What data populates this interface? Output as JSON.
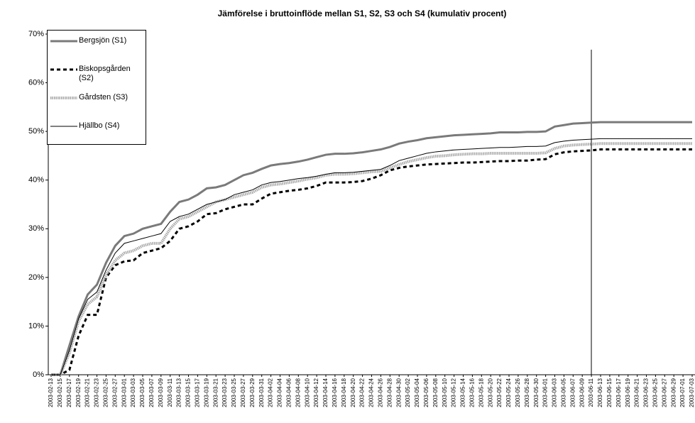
{
  "chart_data": {
    "type": "line",
    "title": "Jämförelse i bruttoinflöde mellan S1, S2, S3 och S4 (kumulativ procent)",
    "categories": [
      "2003-02-13",
      "2003-02-15",
      "2003-02-17",
      "2003-02-19",
      "2003-02-21",
      "2003-02-23",
      "2003-02-25",
      "2003-02-27",
      "2003-03-01",
      "2003-03-03",
      "2003-03-05",
      "2003-03-07",
      "2003-03-09",
      "2003-03-11",
      "2003-03-13",
      "2003-03-15",
      "2003-03-17",
      "2003-03-19",
      "2003-03-21",
      "2003-03-23",
      "2003-03-25",
      "2003-03-27",
      "2003-03-29",
      "2003-03-31",
      "2003-04-02",
      "2003-04-04",
      "2003-04-06",
      "2003-04-08",
      "2003-04-10",
      "2003-04-12",
      "2003-04-14",
      "2003-04-16",
      "2003-04-18",
      "2003-04-20",
      "2003-04-22",
      "2003-04-24",
      "2003-04-26",
      "2003-04-28",
      "2003-04-30",
      "2003-05-02",
      "2003-05-04",
      "2003-05-06",
      "2003-05-08",
      "2003-05-10",
      "2003-05-12",
      "2003-05-14",
      "2003-05-16",
      "2003-05-18",
      "2003-05-20",
      "2003-05-22",
      "2003-05-24",
      "2003-05-26",
      "2003-05-28",
      "2003-05-30",
      "2003-06-01",
      "2003-06-03",
      "2003-06-05",
      "2003-06-07",
      "2003-06-09",
      "2003-06-11",
      "2003-06-13",
      "2003-06-15",
      "2003-06-17",
      "2003-06-19",
      "2003-06-21",
      "2003-06-23",
      "2003-06-25",
      "2003-06-27",
      "2003-06-29",
      "2003-07-01",
      "2003-07-03"
    ],
    "series": [
      {
        "name": "Bergsjön (S1)",
        "color": "#7a7a7a",
        "values": [
          0,
          0,
          6,
          12,
          16.5,
          18.5,
          23,
          26.5,
          28.5,
          29,
          30,
          30.5,
          31,
          33.5,
          35.5,
          36,
          37,
          38.3,
          38.5,
          39,
          40,
          41,
          41.5,
          42.3,
          43,
          43.3,
          43.5,
          43.8,
          44.2,
          44.7,
          45.2,
          45.4,
          45.4,
          45.5,
          45.7,
          46,
          46.3,
          46.8,
          47.5,
          47.9,
          48.2,
          48.6,
          48.8,
          49,
          49.2,
          49.3,
          49.4,
          49.5,
          49.6,
          49.8,
          49.8,
          49.8,
          49.9,
          49.9,
          50,
          51,
          51.3,
          51.6,
          51.7,
          51.8,
          51.9,
          51.9,
          51.9,
          51.9,
          51.9,
          51.9,
          51.9,
          51.9,
          51.9,
          51.9,
          51.9
        ]
      },
      {
        "name": "Biskopsgården (S2)",
        "color": "#000000",
        "values": [
          0,
          0,
          1,
          8,
          12.3,
          12.3,
          20,
          22.5,
          23.3,
          23.5,
          25,
          25.5,
          26,
          27.5,
          30,
          30.5,
          31.5,
          33,
          33.2,
          34,
          34.5,
          35,
          35,
          36.2,
          37.2,
          37.5,
          37.8,
          38,
          38.3,
          38.8,
          39.5,
          39.5,
          39.5,
          39.6,
          39.8,
          40.3,
          41,
          42,
          42.5,
          42.8,
          43,
          43.2,
          43.3,
          43.4,
          43.5,
          43.6,
          43.6,
          43.7,
          43.8,
          43.9,
          43.9,
          44,
          44,
          44.2,
          44.3,
          45.3,
          45.7,
          45.9,
          46,
          46.1,
          46.3,
          46.3,
          46.3,
          46.3,
          46.3,
          46.3,
          46.3,
          46.3,
          46.3,
          46.3,
          46.3
        ]
      },
      {
        "name": "Gårdsten (S3)",
        "color": "#a8a8a8",
        "values": [
          0,
          0,
          4.5,
          11,
          14.5,
          16,
          20.5,
          23.5,
          25,
          25.5,
          26.5,
          27,
          27,
          30,
          32,
          32.5,
          33.5,
          34.5,
          35.5,
          36,
          36.5,
          37,
          37.5,
          38.5,
          39,
          39.2,
          39.5,
          39.8,
          40.2,
          40.5,
          41,
          41.2,
          41.2,
          41.3,
          41.5,
          41.7,
          41.8,
          42.5,
          43.2,
          43.8,
          44.2,
          44.6,
          44.9,
          45,
          45.2,
          45.3,
          45.4,
          45.4,
          45.5,
          45.5,
          45.5,
          45.5,
          45.5,
          45.5,
          45.6,
          46.5,
          47,
          47.2,
          47.3,
          47.4,
          47.5,
          47.5,
          47.5,
          47.5,
          47.5,
          47.5,
          47.5,
          47.5,
          47.5,
          47.5,
          47.5
        ]
      },
      {
        "name": "Hjällbo (S4)",
        "color": "#000000",
        "values": [
          0,
          0,
          5,
          11.5,
          15.5,
          17,
          21.5,
          25,
          27,
          27.5,
          28,
          28.5,
          29,
          31.5,
          32.5,
          33,
          34,
          35,
          35.5,
          36,
          37,
          37.5,
          38,
          39,
          39.5,
          39.7,
          40,
          40.3,
          40.5,
          40.8,
          41.2,
          41.5,
          41.5,
          41.6,
          41.8,
          42,
          42.2,
          43,
          44,
          44.5,
          45,
          45.5,
          45.8,
          46,
          46.2,
          46.3,
          46.4,
          46.5,
          46.6,
          46.7,
          46.7,
          46.8,
          46.9,
          46.9,
          47,
          47.7,
          48,
          48.2,
          48.3,
          48.4,
          48.5,
          48.5,
          48.5,
          48.5,
          48.5,
          48.5,
          48.5,
          48.5,
          48.5,
          48.5,
          48.5
        ]
      }
    ],
    "ylim": [
      0,
      70
    ],
    "yticks": [
      {
        "value": 0,
        "label": "0%"
      },
      {
        "value": 10,
        "label": "10%"
      },
      {
        "value": 20,
        "label": "20%"
      },
      {
        "value": 30,
        "label": "30%"
      },
      {
        "value": 40,
        "label": "40%"
      },
      {
        "value": 50,
        "label": "50%"
      },
      {
        "value": 60,
        "label": "60%"
      },
      {
        "value": 70,
        "label": "70%"
      }
    ],
    "grid": false,
    "legend": "upper left"
  }
}
